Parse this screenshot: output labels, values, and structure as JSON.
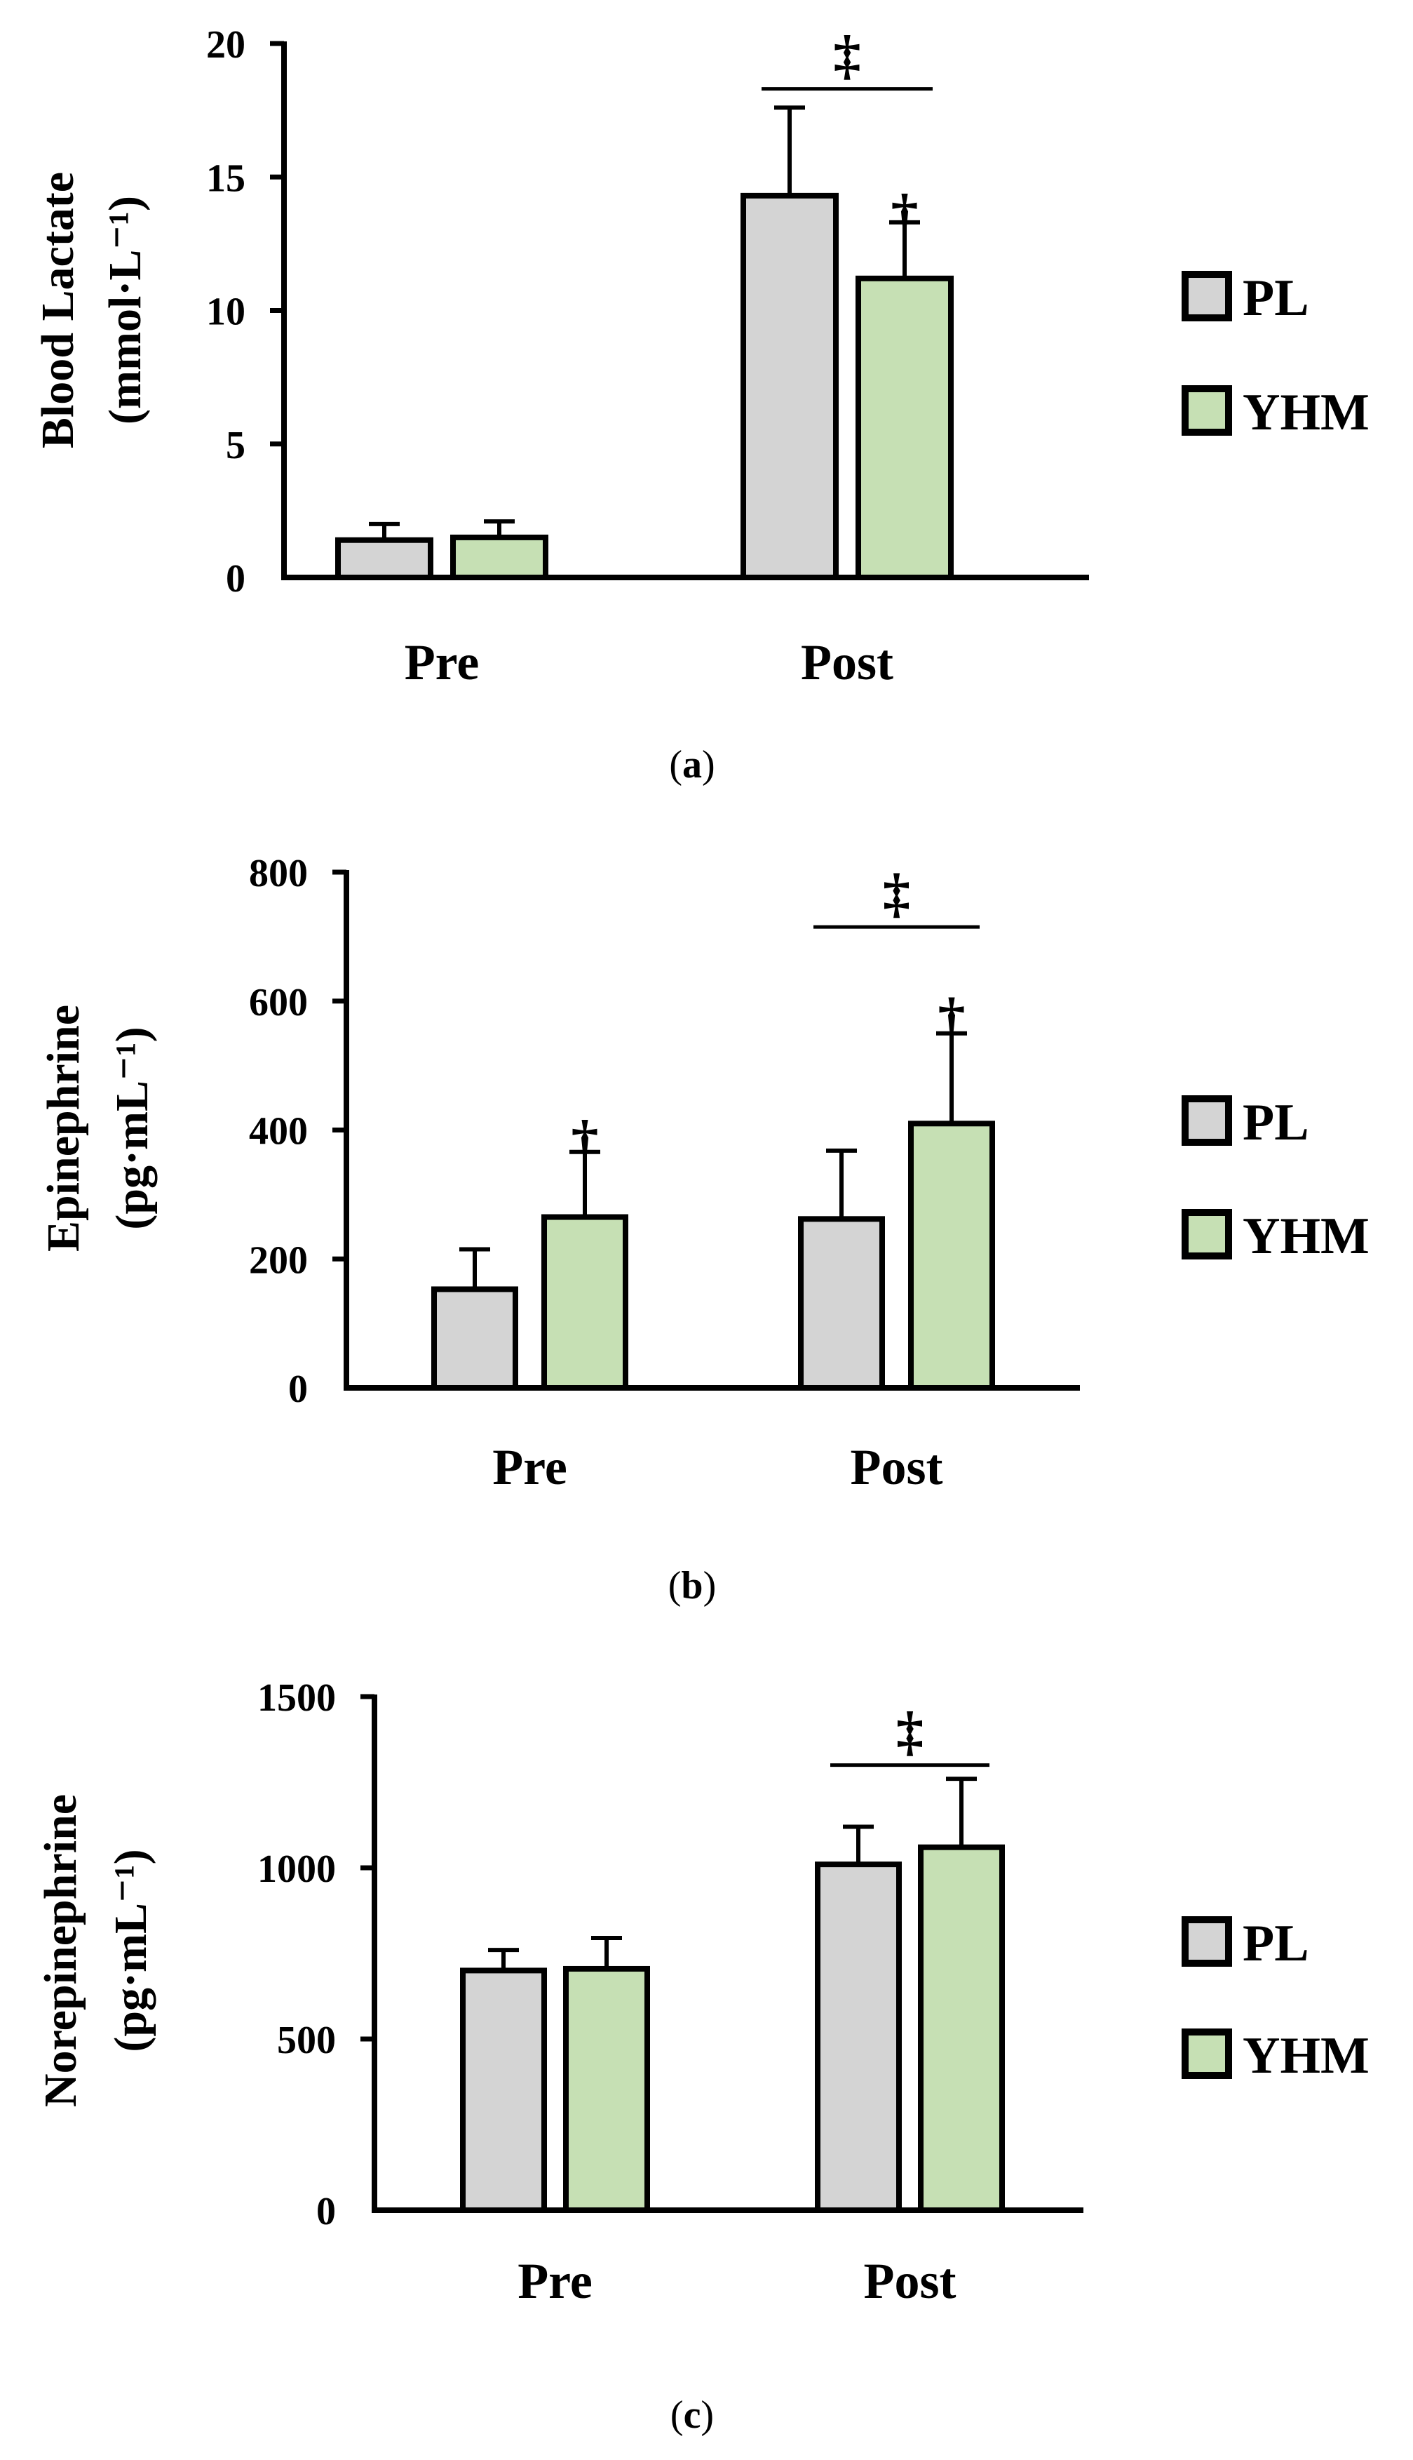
{
  "chart_data": [
    {
      "type": "bar",
      "panel_label": "(a)",
      "ylabel_line1": "Blood Lactate",
      "ylabel_line2": "(mmol·L⁻¹)",
      "ylim": [
        0,
        20
      ],
      "yticks": [
        "0",
        "5",
        "10",
        "15",
        "20"
      ],
      "categories": [
        "Pre",
        "Post"
      ],
      "series": [
        {
          "name": "PL",
          "values": [
            1.4,
            14.3
          ],
          "errors": [
            0.6,
            3.3
          ]
        },
        {
          "name": "YHM",
          "values": [
            1.5,
            11.2
          ],
          "errors": [
            0.6,
            2.1
          ]
        }
      ],
      "legend": [
        "PL",
        "YHM"
      ],
      "annotations": [
        {
          "symbol": "‡",
          "type": "bracket",
          "category": "Post",
          "value": 18.3
        },
        {
          "symbol": "†",
          "type": "above",
          "category": "Post",
          "series": "YHM",
          "value": 14.0
        }
      ]
    },
    {
      "type": "bar",
      "panel_label": "(b)",
      "ylabel_line1": "Epinephrine",
      "ylabel_line2": "(pg·mL⁻¹)",
      "ylim": [
        0,
        800
      ],
      "yticks": [
        "0",
        "200",
        "400",
        "600",
        "800"
      ],
      "categories": [
        "Pre",
        "Post"
      ],
      "series": [
        {
          "name": "PL",
          "values": [
            153,
            262
          ],
          "errors": [
            62,
            106
          ]
        },
        {
          "name": "YHM",
          "values": [
            265,
            410
          ],
          "errors": [
            101,
            140
          ]
        }
      ],
      "legend": [
        "PL",
        "YHM"
      ],
      "annotations": [
        {
          "symbol": "‡",
          "type": "bracket",
          "category": "Post",
          "value": 715
        },
        {
          "symbol": "†",
          "type": "above",
          "category": "Pre",
          "series": "YHM",
          "value": 400
        },
        {
          "symbol": "†",
          "type": "above",
          "category": "Post",
          "series": "YHM",
          "value": 590
        }
      ]
    },
    {
      "type": "bar",
      "panel_label": "(c)",
      "ylabel_line1": "Norepinephrine",
      "ylabel_line2": "(pg·mL⁻¹)",
      "ylim": [
        0,
        1500
      ],
      "yticks": [
        "0",
        "500",
        "1000",
        "1500"
      ],
      "categories": [
        "Pre",
        "Post"
      ],
      "series": [
        {
          "name": "PL",
          "values": [
            700,
            1010
          ],
          "errors": [
            60,
            110
          ]
        },
        {
          "name": "YHM",
          "values": [
            705,
            1060
          ],
          "errors": [
            90,
            200
          ]
        }
      ],
      "legend": [
        "PL",
        "YHM"
      ],
      "annotations": [
        {
          "symbol": "‡",
          "type": "bracket",
          "category": "Post",
          "value": 1300
        }
      ]
    }
  ],
  "colors": {
    "PL": "#d4d4d4",
    "YHM": "#c6e0b4",
    "axis": "#000000"
  }
}
